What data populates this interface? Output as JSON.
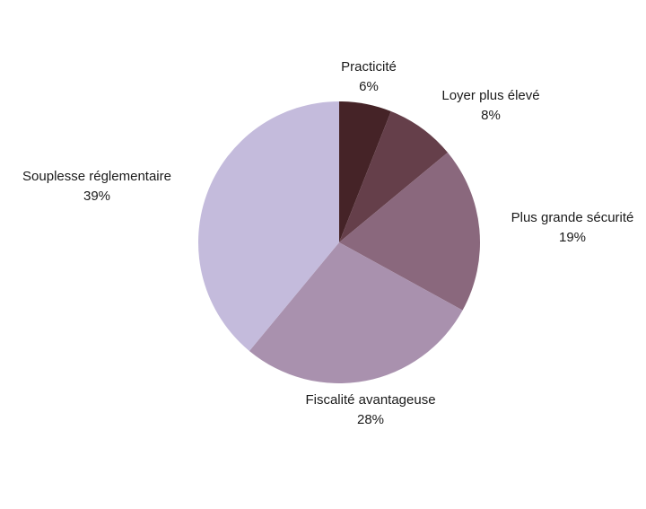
{
  "chart_data": {
    "type": "pie",
    "start_angle": "top",
    "direction": "clockwise",
    "slices": [
      {
        "label": "Practicité",
        "value": 6,
        "value_label": "6%",
        "color": "#452327"
      },
      {
        "label": "Loyer plus élevé",
        "value": 8,
        "value_label": "8%",
        "color": "#653f4a"
      },
      {
        "label": "Plus grande sécurité",
        "value": 19,
        "value_label": "19%",
        "color": "#8a687d"
      },
      {
        "label": "Fiscalité avantageuse",
        "value": 28,
        "value_label": "28%",
        "color": "#a991ae"
      },
      {
        "label": "Souplesse réglementaire",
        "value": 39,
        "value_label": "39%",
        "color": "#c4bbdc"
      }
    ]
  }
}
